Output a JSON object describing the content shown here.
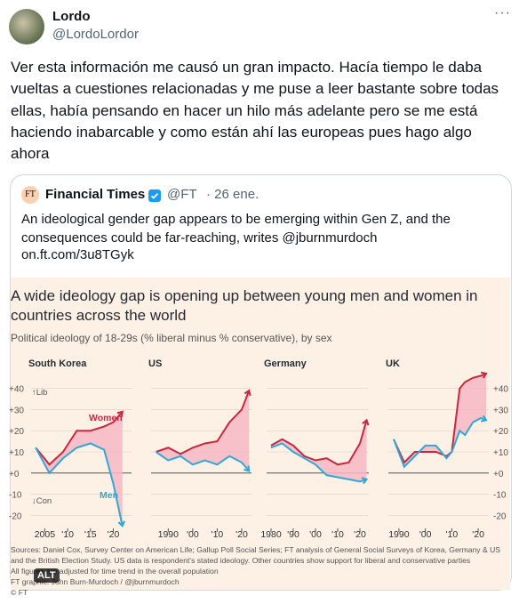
{
  "tweet": {
    "name": "Lordo",
    "handle": "@LordoLordor",
    "text": "Ver esta información me causó un gran impacto. Hacía tiempo le daba vueltas a cuestiones relacionadas y me puse a leer bastante sobre todas ellas, había pensando en hacer un hilo más adelante pero se me está haciendo inabarcable y como están ahí las europeas pues hago algo ahora"
  },
  "quote": {
    "logo": "FT",
    "name": "Financial Times",
    "handle": "@FT",
    "date": "· 26 ene.",
    "text": "An ideological gender gap appears to be emerging within Gen Z, and the consequences could be far-reaching, writes @jburnmurdoch",
    "link": "on.ft.com/3u8TGyk"
  },
  "figure": {
    "title": "A wide ideology gap is opening up between young men and women in countries across the world",
    "subtitle": "Political ideology of 18-29s (% liberal minus % conservative), by sex",
    "sources": [
      "Sources: Daniel Cox, Survey Center on American Life; Gallup Poll Social Series; FT analysis of General Social Surveys of Korea, Germany & US and the British Election Study. US data is respondent's stated ideology. Other countries show support for liberal and conservative parties",
      "All figures are adjusted for time trend in the overall population",
      "FT graphic: John Burn-Murdoch / @jburnmurdoch",
      "© FT"
    ],
    "alt": "ALT"
  },
  "chart_data": [
    {
      "type": "line",
      "title": "South Korea",
      "annotations": [
        "↑Lib",
        "↓Con"
      ],
      "x": [
        2003,
        2006,
        2009,
        2012,
        2015,
        2018,
        2020,
        2022
      ],
      "series": [
        {
          "name": "Women",
          "color": "#c8283e",
          "values": [
            12,
            4,
            10,
            20,
            20,
            22,
            24,
            29
          ]
        },
        {
          "name": "Men",
          "color": "#2fa8d8",
          "values": [
            12,
            0,
            7,
            12,
            14,
            11,
            -5,
            -25
          ]
        }
      ],
      "xlim": [
        2002,
        2024
      ],
      "xticks": [
        2005,
        {
          "value": 2010,
          "label": "'10"
        },
        {
          "value": 2015,
          "label": "'15"
        },
        {
          "value": 2020,
          "label": "'20"
        }
      ],
      "ylim": [
        -27,
        47
      ],
      "yticks": [
        {
          "value": 40,
          "label": "+40"
        },
        {
          "value": 30,
          "label": "+30"
        },
        {
          "value": 20,
          "label": "+20"
        },
        {
          "value": 10,
          "label": "+10"
        },
        {
          "value": 0,
          "label": "+0"
        },
        {
          "value": -10,
          "label": "-10"
        },
        {
          "value": -20,
          "label": "-20"
        }
      ],
      "fill": "#f7b7c3"
    },
    {
      "type": "line",
      "title": "US",
      "x": [
        1985,
        1990,
        1995,
        2000,
        2005,
        2010,
        2015,
        2020,
        2023
      ],
      "series": [
        {
          "color": "#c8283e",
          "values": [
            10,
            12,
            9,
            12,
            14,
            15,
            24,
            30,
            39
          ]
        },
        {
          "color": "#2fa8d8",
          "values": [
            10,
            6,
            8,
            4,
            6,
            4,
            8,
            5,
            1
          ]
        }
      ],
      "xlim": [
        1983,
        2024
      ],
      "xticks": [
        1990,
        {
          "value": 2000,
          "label": "'00"
        },
        {
          "value": 2010,
          "label": "'10"
        },
        {
          "value": 2020,
          "label": "'20"
        }
      ],
      "ylim": [
        -27,
        47
      ],
      "yticks": [
        40,
        30,
        20,
        10,
        0,
        -10,
        -20
      ],
      "fill": "#f7b7c3"
    },
    {
      "type": "line",
      "title": "Germany",
      "x": [
        1980,
        1985,
        1990,
        1995,
        2000,
        2005,
        2010,
        2015,
        2020,
        2023
      ],
      "series": [
        {
          "color": "#c8283e",
          "values": [
            13,
            16,
            13,
            8,
            6,
            7,
            4,
            5,
            14,
            25
          ]
        },
        {
          "color": "#2fa8d8",
          "values": [
            12,
            14,
            10,
            7,
            4,
            -1,
            -2,
            -3,
            -4,
            -3
          ]
        }
      ],
      "xlim": [
        1978,
        2024
      ],
      "xticks": [
        1980,
        {
          "value": 1990,
          "label": "'90"
        },
        {
          "value": 2000,
          "label": "'00"
        },
        {
          "value": 2010,
          "label": "'10"
        },
        {
          "value": 2020,
          "label": "'20"
        }
      ],
      "ylim": [
        -27,
        47
      ],
      "yticks": [
        40,
        30,
        20,
        10,
        0,
        -10,
        -20
      ],
      "fill": "#f7b7c3"
    },
    {
      "type": "line",
      "title": "UK",
      "x": [
        1988,
        1992,
        1996,
        2000,
        2004,
        2008,
        2010,
        2013,
        2015,
        2018,
        2021,
        2023
      ],
      "series": [
        {
          "color": "#c8283e",
          "values": [
            16,
            5,
            10,
            10,
            10,
            8,
            10,
            40,
            43,
            45,
            46,
            47
          ]
        },
        {
          "color": "#2fa8d8",
          "values": [
            16,
            3,
            8,
            13,
            13,
            7,
            10,
            20,
            18,
            24,
            26,
            25
          ]
        }
      ],
      "xlim": [
        1986,
        2024
      ],
      "xticks": [
        1990,
        {
          "value": 2000,
          "label": "'00"
        },
        {
          "value": 2010,
          "label": "'10"
        },
        {
          "value": 2020,
          "label": "'20"
        }
      ],
      "ylim": [
        -27,
        47
      ],
      "yticks": [
        {
          "value": 40,
          "label": "+40"
        },
        {
          "value": 30,
          "label": "+30"
        },
        {
          "value": 20,
          "label": "+20"
        },
        {
          "value": 10,
          "label": "+10"
        },
        {
          "value": 0,
          "label": "+0"
        },
        {
          "value": -10,
          "label": "-10"
        },
        {
          "value": -20,
          "label": "-20"
        }
      ],
      "fill": "#f7b7c3"
    }
  ]
}
